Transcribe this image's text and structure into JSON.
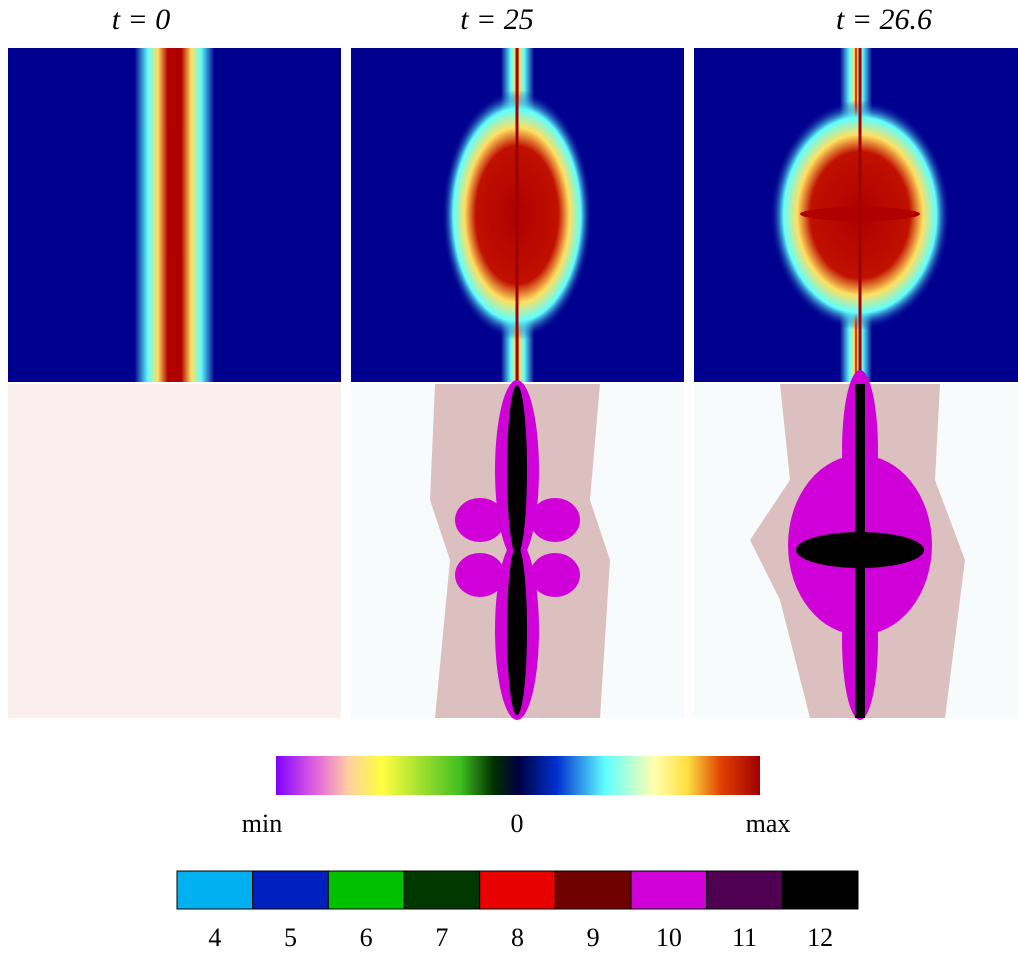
{
  "panel_titles": [
    "t = 0",
    "t = 25",
    "t = 26.6"
  ],
  "colorbar": {
    "labels": [
      "min",
      "0",
      "max"
    ]
  },
  "levels": [
    {
      "value": 4,
      "color": "#00b0f0"
    },
    {
      "value": 5,
      "color": "#0020c0"
    },
    {
      "value": 6,
      "color": "#00c000"
    },
    {
      "value": 7,
      "color": "#003800"
    },
    {
      "value": 8,
      "color": "#e80000"
    },
    {
      "value": 9,
      "color": "#700000"
    },
    {
      "value": 10,
      "color": "#d000d8"
    },
    {
      "value": 11,
      "color": "#500050"
    },
    {
      "value": 12,
      "color": "#000000"
    }
  ]
}
